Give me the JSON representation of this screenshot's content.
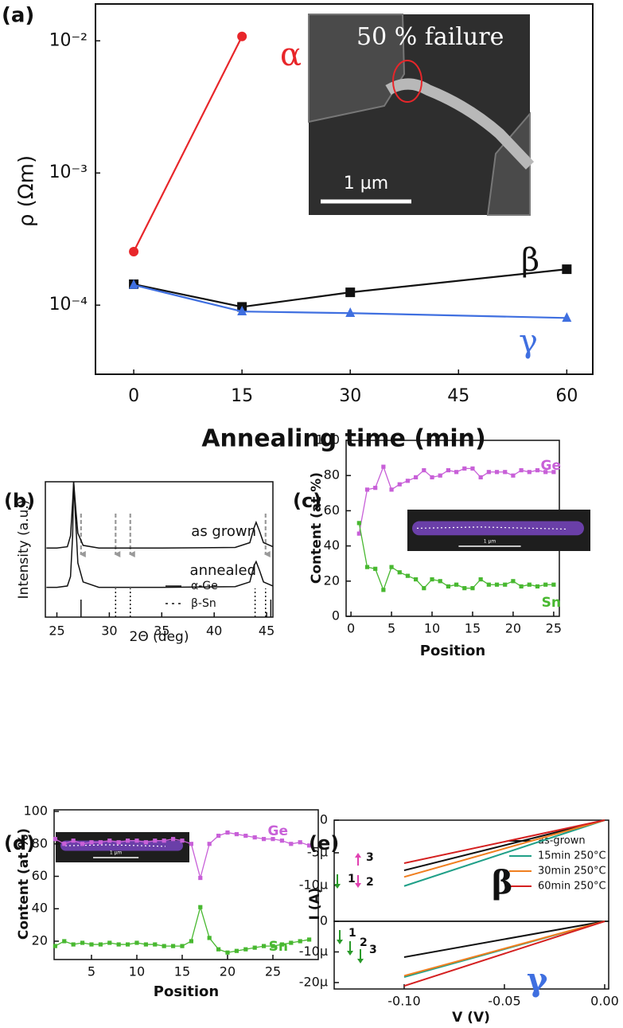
{
  "chart_data": [
    {
      "type": "line",
      "panel_label": "(a)",
      "xlabel": "Annealing time (min)",
      "ylabel": "ρ (Ωm)",
      "log_y": true,
      "xlim": [
        -5.3,
        63.6
      ],
      "ylim": [
        3e-05,
        0.019
      ],
      "xticks": [
        0,
        15,
        30,
        45,
        60
      ],
      "yticks": [
        {
          "value": 0.01,
          "label": "10⁻²"
        },
        {
          "value": 0.001,
          "label": "10⁻³"
        },
        {
          "value": 0.0001,
          "label": "10⁻⁴"
        }
      ],
      "series": [
        {
          "name": "α",
          "color": "#e8262a",
          "marker": "circle",
          "x": [
            0,
            15
          ],
          "values": [
            0.000254,
            0.0108
          ]
        },
        {
          "name": "β",
          "color": "#111111",
          "marker": "square",
          "x": [
            0,
            15,
            30,
            60
          ],
          "values": [
            0.000144,
            9.7e-05,
            0.000125,
            0.000187
          ]
        },
        {
          "name": "γ",
          "color": "#3f6fe0",
          "marker": "triangle",
          "x": [
            0,
            15,
            30,
            60
          ],
          "values": [
            0.000142,
            8.95e-05,
            8.7e-05,
            8e-05
          ]
        }
      ],
      "inset": {
        "caption": "50 % failure",
        "scale_bar": "1 µm"
      }
    },
    {
      "type": "line",
      "panel_label": "(b)",
      "xlabel": "2Θ (deg)",
      "ylabel": "Intensity (a.u.)",
      "xlim": [
        23.9,
        45.6
      ],
      "ylim": [
        0,
        10
      ],
      "xticks": [
        25,
        30,
        35,
        40,
        45
      ],
      "x": [
        24,
        25,
        26,
        26.3,
        26.5,
        26.6,
        26.8,
        27.0,
        27.5,
        29,
        35,
        42,
        43.4,
        43.8,
        44.0,
        44.3,
        44.7,
        45.6
      ],
      "series": [
        {
          "name": "as grown",
          "color": "#111111",
          "values": [
            5.1,
            5.1,
            5.2,
            6,
            8.5,
            10,
            8,
            6.2,
            5.3,
            5.1,
            5.1,
            5.15,
            5.5,
            6.6,
            7.0,
            6.4,
            5.5,
            5.2
          ]
        },
        {
          "name": "annealed",
          "color": "#111111",
          "values": [
            2.2,
            2.2,
            2.3,
            3,
            6,
            10,
            7,
            4,
            2.6,
            2.2,
            2.2,
            2.25,
            2.6,
            3.8,
            4.1,
            3.5,
            2.6,
            2.3
          ]
        }
      ],
      "references": [
        {
          "name": "α-Ge",
          "style": "solid",
          "positions": [
            27.3,
            45.4
          ]
        },
        {
          "name": "β-Sn",
          "style": "dotted",
          "positions": [
            30.6,
            32.0,
            43.9,
            44.9
          ]
        }
      ],
      "arrows": [
        27.3,
        30.6,
        32.0,
        44.9
      ]
    },
    {
      "type": "line",
      "panel_label": "(c)",
      "xlabel": "Position",
      "ylabel": "Content (at %)",
      "xlim": [
        -0.6,
        25.7
      ],
      "ylim": [
        0,
        100
      ],
      "xticks": [
        0,
        5,
        10,
        15,
        20,
        25
      ],
      "yticks": [
        0,
        20,
        40,
        60,
        80,
        100
      ],
      "x": [
        1,
        2,
        3,
        4,
        5,
        6,
        7,
        8,
        9,
        10,
        11,
        12,
        13,
        14,
        15,
        16,
        17,
        18,
        19,
        20,
        21,
        22,
        23,
        24,
        25
      ],
      "series": [
        {
          "name": "Ge",
          "color": "#c860d8",
          "marker": "square",
          "values": [
            47,
            72,
            73,
            85,
            72,
            75,
            77,
            79,
            83,
            79,
            80,
            83,
            82,
            84,
            84,
            79,
            82,
            82,
            82,
            80,
            83,
            82,
            83,
            82,
            82
          ]
        },
        {
          "name": "Sn",
          "color": "#48b830",
          "marker": "square",
          "values": [
            53,
            28,
            27,
            15,
            28,
            25,
            23,
            21,
            16,
            21,
            20,
            17,
            18,
            16,
            16,
            21,
            18,
            18,
            18,
            20,
            17,
            18,
            17,
            18,
            18
          ]
        }
      ],
      "inset": {
        "scale_bar": "1 µm"
      }
    },
    {
      "type": "line",
      "panel_label": "(d)",
      "xlabel": "Position",
      "ylabel": "Content (at %)",
      "xlim": [
        0.88,
        30.0
      ],
      "ylim": [
        8.7,
        101
      ],
      "xticks": [
        5,
        10,
        15,
        20,
        25
      ],
      "yticks": [
        20,
        40,
        60,
        80,
        100
      ],
      "x": [
        1,
        2,
        3,
        4,
        5,
        6,
        7,
        8,
        9,
        10,
        11,
        12,
        13,
        14,
        15,
        16,
        17,
        18,
        19,
        20,
        21,
        22,
        23,
        24,
        25,
        26,
        27,
        28,
        29
      ],
      "series": [
        {
          "name": "Ge",
          "color": "#c860d8",
          "marker": "square",
          "values": [
            83,
            80,
            82,
            80,
            81,
            81,
            82,
            81,
            82,
            82,
            81,
            82,
            82,
            83,
            82,
            80,
            59,
            80,
            85,
            87,
            86,
            85,
            84,
            83,
            83,
            82,
            80,
            81,
            79
          ]
        },
        {
          "name": "Sn",
          "color": "#48b830",
          "marker": "square",
          "values": [
            17,
            20,
            18,
            19,
            18,
            18,
            19,
            18,
            18,
            19,
            18,
            18,
            17,
            17,
            17,
            20,
            41,
            22,
            15,
            13,
            14,
            15,
            16,
            17,
            17,
            18,
            19,
            20,
            21
          ]
        }
      ],
      "inset": {
        "scale_bar": "1 µm"
      }
    },
    {
      "type": "line",
      "panel_label": "(e)",
      "ylabel": "I (A)",
      "xlim": [
        -0.1349,
        0.002
      ],
      "ylim": [
        -1.55e-05,
        0
      ],
      "yticks": [
        0,
        {
          "value": -5e-06,
          "label": "-5µ"
        },
        {
          "value": -1e-05,
          "label": "-10µ"
        }
      ],
      "x": [
        -0.1,
        0
      ],
      "series": [
        {
          "name": "as-grown",
          "color": "#111111",
          "values": [
            -7.7e-06,
            0
          ]
        },
        {
          "name": "15min 250°C",
          "color": "#20a088",
          "values": [
            -1.01e-05,
            0
          ]
        },
        {
          "name": "30min 250°C",
          "color": "#f07f20",
          "values": [
            -8.7e-06,
            0
          ]
        },
        {
          "name": "60min 250°C",
          "color": "#d42020",
          "values": [
            -6.6e-06,
            0
          ]
        }
      ],
      "annotations": [
        "β",
        "1",
        "2",
        "3"
      ]
    },
    {
      "type": "line",
      "xlabel": "V (V)",
      "xlim": [
        -0.1349,
        0.002
      ],
      "ylim": [
        -2.21e-05,
        0
      ],
      "xticks": [
        {
          "value": -0.1,
          "label": "-0.10"
        },
        -0.05,
        {
          "value": 0,
          "label": "0.00"
        }
      ],
      "yticks": [
        0,
        {
          "value": -1e-05,
          "label": "-10µ"
        },
        {
          "value": -2e-05,
          "label": "-20µ"
        }
      ],
      "x": [
        -0.1,
        0
      ],
      "series": [
        {
          "color": "#111111",
          "values": [
            -1.17e-05,
            0
          ]
        },
        {
          "color": "#20a088",
          "values": [
            -1.82e-05,
            0
          ]
        },
        {
          "color": "#f07f20",
          "values": [
            -1.78e-05,
            0
          ]
        },
        {
          "color": "#d42020",
          "values": [
            -2.11e-05,
            0
          ]
        }
      ],
      "annotations": [
        "γ",
        "1",
        "2",
        "3"
      ]
    }
  ]
}
